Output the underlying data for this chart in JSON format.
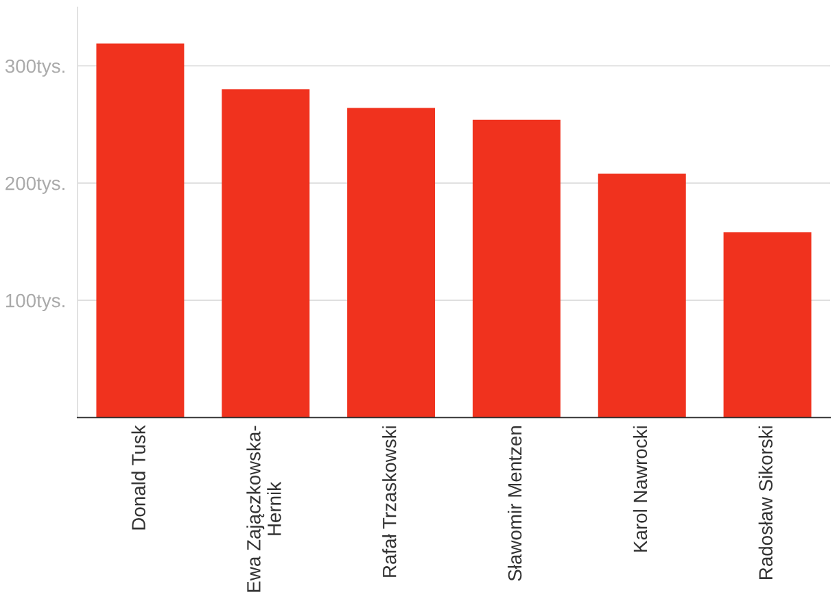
{
  "chart_data": {
    "type": "bar",
    "categories": [
      "Donald Tusk",
      "Ewa Zajączkowska-\nHernik",
      "Rafał Trzaskowski",
      "Sławomir Mentzen",
      "Karol Nawrocki",
      "Radosław Sikorski"
    ],
    "values": [
      319,
      280,
      264,
      254,
      208,
      158
    ],
    "color": "#f0321e",
    "ylim": [
      0,
      350
    ],
    "yticks": [
      {
        "value": 100,
        "label": "100tys."
      },
      {
        "value": 200,
        "label": "200tys."
      },
      {
        "value": 300,
        "label": "300tys."
      }
    ],
    "grid": "y"
  }
}
